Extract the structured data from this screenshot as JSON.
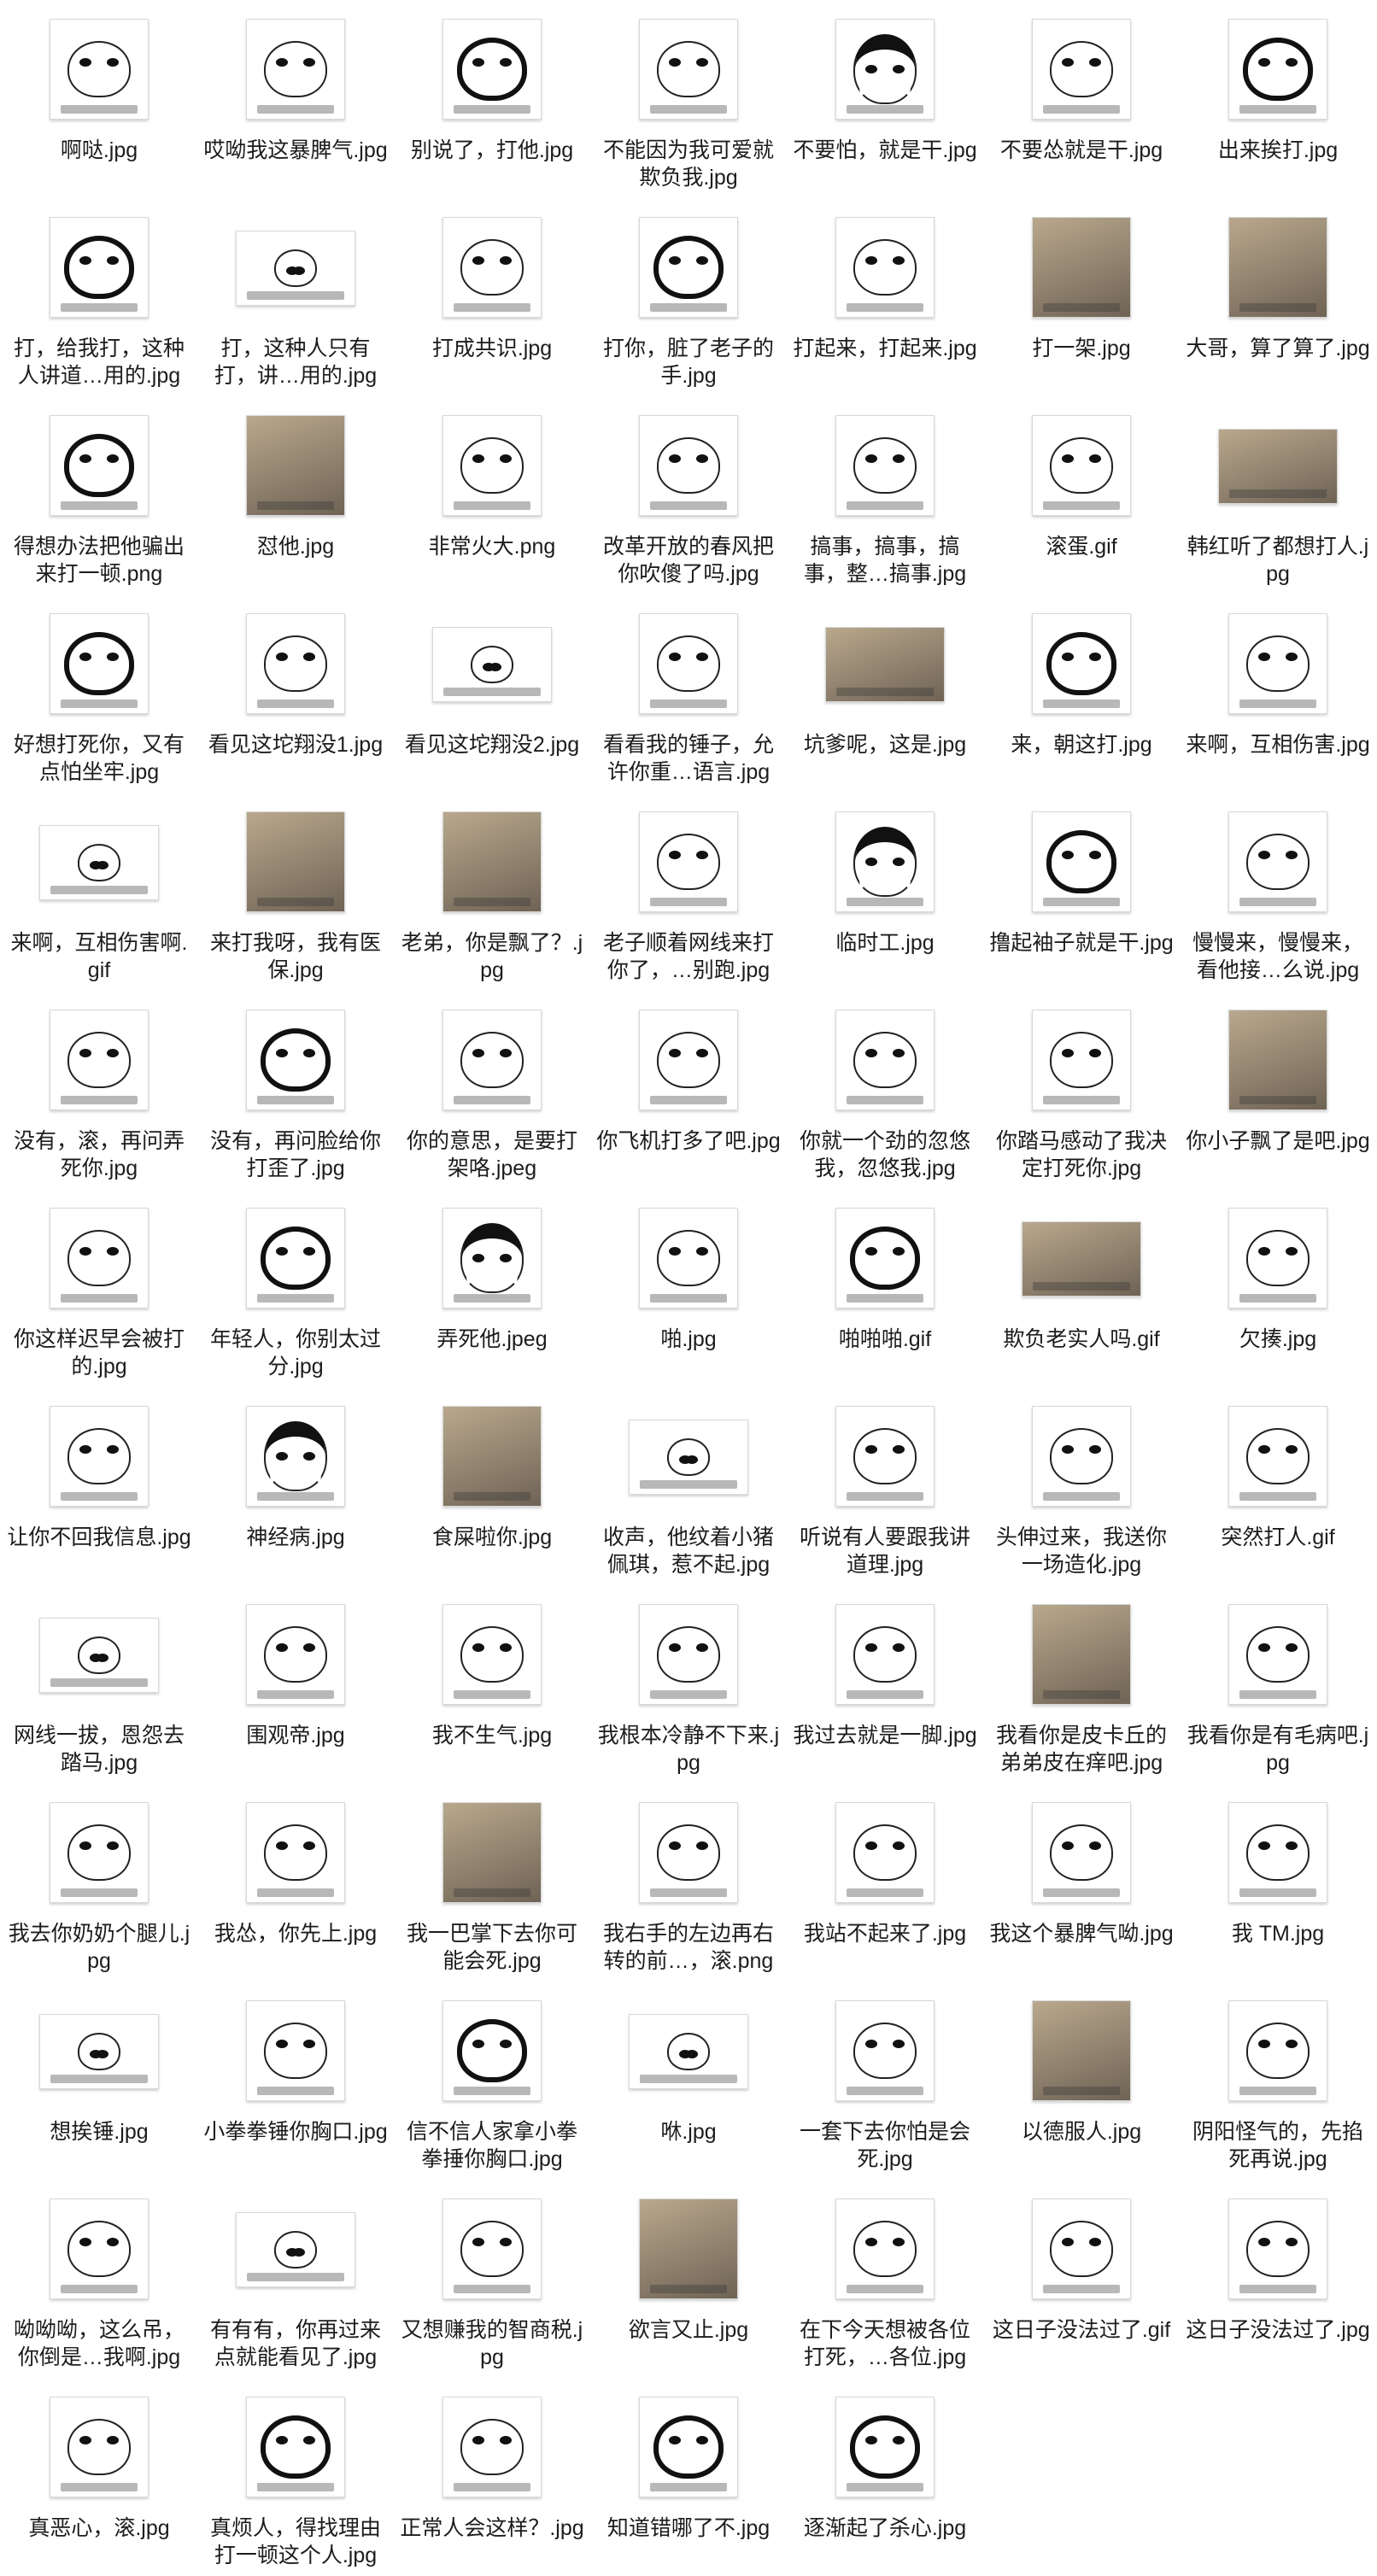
{
  "files": [
    "啊哒.jpg",
    "哎呦我这暴脾气.jpg",
    "别说了，打他.jpg",
    "不能因为我可爱就欺负我.jpg",
    "不要怕，就是干.jpg",
    "不要怂就是干.jpg",
    "出来挨打.jpg",
    "打，给我打，这种人讲道…用的.jpg",
    "打，这种人只有打，讲…用的.jpg",
    "打成共识.jpg",
    "打你，脏了老子的手.jpg",
    "打起来，打起来.jpg",
    "打一架.jpg",
    "大哥，算了算了.jpg",
    "得想办法把他骗出来打一顿.png",
    "怼他.jpg",
    "非常火大.png",
    "改革开放的春风把你吹傻了吗.jpg",
    "搞事，搞事，搞事，整…搞事.jpg",
    "滚蛋.gif",
    "韩红听了都想打人.jpg",
    "好想打死你，又有点怕坐牢.jpg",
    "看见这坨翔没1.jpg",
    "看见这坨翔没2.jpg",
    "看看我的锤子，允许你重…语言.jpg",
    "坑爹呢，这是.jpg",
    "来，朝这打.jpg",
    "来啊，互相伤害.jpg",
    "来啊，互相伤害啊.gif",
    "来打我呀，我有医保.jpg",
    "老弟，你是飘了？.jpg",
    "老子顺着网线来打你了，…别跑.jpg",
    "临时工.jpg",
    "撸起袖子就是干.jpg",
    "慢慢来，慢慢来，看他接…么说.jpg",
    "没有，滚，再问弄死你.jpg",
    "没有，再问脸给你打歪了.jpg",
    "你的意思，是要打架咯.jpeg",
    "你飞机打多了吧.jpg",
    "你就一个劲的忽悠我，忽悠我.jpg",
    "你踏马感动了我决定打死你.jpg",
    "你小子飘了是吧.jpg",
    "你这样迟早会被打的.jpg",
    "年轻人，你别太过分.jpg",
    "弄死他.jpeg",
    "啪.jpg",
    "啪啪啪.gif",
    "欺负老实人吗.gif",
    "欠揍.jpg",
    "让你不回我信息.jpg",
    "神经病.jpg",
    "食屎啦你.jpg",
    "收声，他纹着小猪佩琪，惹不起.jpg",
    "听说有人要跟我讲道理.jpg",
    "头伸过来，我送你一场造化.jpg",
    "突然打人.gif",
    "网线一拔，恩怨去踏马.jpg",
    "围观帝.jpg",
    "我不生气.jpg",
    "我根本冷静不下来.jpg",
    "我过去就是一脚.jpg",
    "我看你是皮卡丘的弟弟皮在痒吧.jpg",
    "我看你是有毛病吧.jpg",
    "我去你奶奶个腿儿.jpg",
    "我怂，你先上.jpg",
    "我一巴掌下去你可能会死.jpg",
    "我右手的左边再右转的前…，滚.png",
    "我站不起来了.jpg",
    "我这个暴脾气呦.jpg",
    "我 TM.jpg",
    "想挨锤.jpg",
    "小拳拳锤你胸口.jpg",
    "信不信人家拿小拳拳捶你胸口.jpg",
    "咻.jpg",
    "一套下去你怕是会死.jpg",
    "以德服人.jpg",
    "阴阳怪气的，先掐死再说.jpg",
    "呦呦呦，这么吊，你倒是…我啊.jpg",
    "有有有，你再过来点就能看见了.jpg",
    "又想赚我的智商税.jpg",
    "欲言又止.jpg",
    "在下今天想被各位打死，…各位.jpg",
    "这日子没法过了.gif",
    "这日子没法过了.jpg",
    "真恶心，滚.jpg",
    "真烦人，得找理由打一顿这个人.jpg",
    "正常人会这样？.jpg",
    "知道错哪了不.jpg",
    "逐渐起了杀心.jpg"
  ],
  "thumb_styles": [
    "plain",
    "plain",
    "panda",
    "plain",
    "mush",
    "plain",
    "panda",
    "panda",
    "wide",
    "plain",
    "panda",
    "plain",
    "photo",
    "photo",
    "panda",
    "photo",
    "plain",
    "plain",
    "plain",
    "plain",
    "wide-photo",
    "panda",
    "plain",
    "wide",
    "plain",
    "wide-photo",
    "panda",
    "plain",
    "wide",
    "photo",
    "photo",
    "plain",
    "mush",
    "panda",
    "plain",
    "plain",
    "panda",
    "plain",
    "plain",
    "plain",
    "plain",
    "photo",
    "plain",
    "panda",
    "mush",
    "plain",
    "panda",
    "wide-photo",
    "plain",
    "plain",
    "mush",
    "photo",
    "wide",
    "plain",
    "plain",
    "plain",
    "wide",
    "plain",
    "plain",
    "plain",
    "plain",
    "photo",
    "plain",
    "plain",
    "plain",
    "photo",
    "plain",
    "plain",
    "plain",
    "plain",
    "wide",
    "plain",
    "panda",
    "wide",
    "plain",
    "photo",
    "plain",
    "plain",
    "wide",
    "plain",
    "photo",
    "plain",
    "plain",
    "plain",
    "plain",
    "panda",
    "plain",
    "panda",
    "panda"
  ]
}
